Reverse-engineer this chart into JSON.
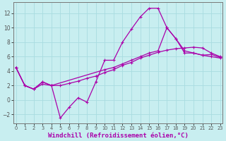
{
  "background_color": "#c8eef0",
  "grid_color": "#a8dce0",
  "line_color": "#aa00aa",
  "xlabel": "Windchill (Refroidissement éolien,°C)",
  "xlabel_fontsize": 6.5,
  "yticks": [
    -2,
    0,
    2,
    4,
    6,
    8,
    10,
    12
  ],
  "xticks": [
    0,
    1,
    2,
    3,
    4,
    5,
    6,
    7,
    8,
    9,
    10,
    11,
    12,
    13,
    14,
    15,
    16,
    17,
    18,
    19,
    20,
    21,
    22,
    23
  ],
  "xlim": [
    -0.3,
    23.3
  ],
  "ylim": [
    -3.2,
    13.5
  ],
  "line1": {
    "x": [
      0,
      1,
      2,
      3,
      4,
      5,
      6,
      7,
      8,
      9,
      10,
      11,
      12,
      13,
      14,
      15,
      16,
      17,
      18,
      19,
      20,
      21,
      22,
      23
    ],
    "y": [
      4.5,
      2.0,
      1.5,
      2.5,
      2.0,
      -2.5,
      -1.0,
      0.3,
      -0.3,
      2.5,
      5.5,
      5.5,
      8.0,
      9.8,
      11.5,
      12.7,
      12.7,
      10.0,
      8.5,
      6.5,
      6.5,
      6.2,
      6.0,
      5.8
    ]
  },
  "line2": {
    "x": [
      0,
      1,
      2,
      3,
      4,
      10,
      11,
      12,
      13,
      14,
      15,
      16,
      17,
      18,
      19,
      20,
      21,
      22,
      23
    ],
    "y": [
      4.5,
      2.0,
      1.5,
      2.5,
      2.0,
      4.2,
      4.5,
      5.0,
      5.5,
      6.0,
      6.5,
      6.8,
      10.0,
      8.5,
      6.8,
      6.5,
      6.2,
      6.3,
      5.9
    ]
  },
  "line3": {
    "x": [
      0,
      1,
      2,
      3,
      4,
      5,
      6,
      7,
      8,
      9,
      10,
      11,
      12,
      13,
      14,
      15,
      16,
      17,
      18,
      19,
      20,
      21,
      22,
      23
    ],
    "y": [
      4.5,
      2.0,
      1.5,
      2.2,
      2.0,
      2.0,
      2.3,
      2.6,
      3.0,
      3.3,
      3.8,
      4.2,
      4.8,
      5.2,
      5.8,
      6.2,
      6.6,
      6.9,
      7.1,
      7.2,
      7.3,
      7.2,
      6.5,
      6.0
    ]
  }
}
